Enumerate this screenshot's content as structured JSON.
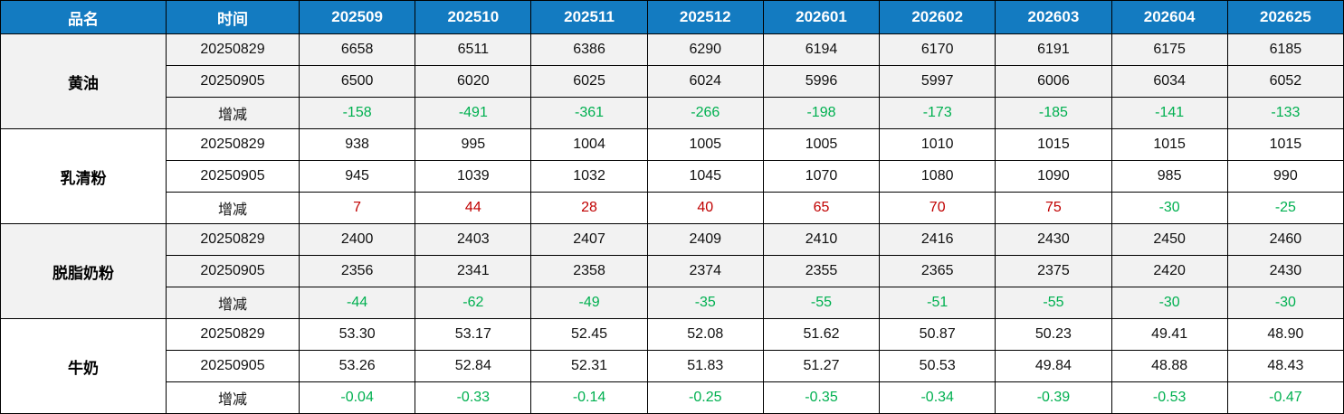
{
  "header": {
    "product_col": "品名",
    "time_col": "时间",
    "contracts": [
      "202509",
      "202510",
      "202511",
      "202512",
      "202601",
      "202602",
      "202603",
      "202604",
      "202625"
    ]
  },
  "change_label": "增减",
  "dates": [
    "20250829",
    "20250905"
  ],
  "products": [
    {
      "name": "黄油",
      "rows": [
        {
          "label": "20250829",
          "type": "price",
          "values": [
            "6658",
            "6511",
            "6386",
            "6290",
            "6194",
            "6170",
            "6191",
            "6175",
            "6185"
          ]
        },
        {
          "label": "20250905",
          "type": "price",
          "values": [
            "6500",
            "6020",
            "6025",
            "6024",
            "5996",
            "5997",
            "6006",
            "6034",
            "6052"
          ]
        },
        {
          "label": "增减",
          "type": "change",
          "values": [
            "-158",
            "-491",
            "-361",
            "-266",
            "-198",
            "-173",
            "-185",
            "-141",
            "-133"
          ]
        }
      ]
    },
    {
      "name": "乳清粉",
      "rows": [
        {
          "label": "20250829",
          "type": "price",
          "values": [
            "938",
            "995",
            "1004",
            "1005",
            "1005",
            "1010",
            "1015",
            "1015",
            "1015"
          ]
        },
        {
          "label": "20250905",
          "type": "price",
          "values": [
            "945",
            "1039",
            "1032",
            "1045",
            "1070",
            "1080",
            "1090",
            "985",
            "990"
          ]
        },
        {
          "label": "增减",
          "type": "change",
          "values": [
            "7",
            "44",
            "28",
            "40",
            "65",
            "70",
            "75",
            "-30",
            "-25"
          ]
        }
      ]
    },
    {
      "name": "脱脂奶粉",
      "rows": [
        {
          "label": "20250829",
          "type": "price",
          "values": [
            "2400",
            "2403",
            "2407",
            "2409",
            "2410",
            "2416",
            "2430",
            "2450",
            "2460"
          ]
        },
        {
          "label": "20250905",
          "type": "price",
          "values": [
            "2356",
            "2341",
            "2358",
            "2374",
            "2355",
            "2365",
            "2375",
            "2420",
            "2430"
          ]
        },
        {
          "label": "增减",
          "type": "change",
          "values": [
            "-44",
            "-62",
            "-49",
            "-35",
            "-55",
            "-51",
            "-55",
            "-30",
            "-30"
          ]
        }
      ]
    },
    {
      "name": "牛奶",
      "rows": [
        {
          "label": "20250829",
          "type": "price",
          "values": [
            "53.30",
            "53.17",
            "52.45",
            "52.08",
            "51.62",
            "50.87",
            "50.23",
            "49.41",
            "48.90"
          ]
        },
        {
          "label": "20250905",
          "type": "price",
          "values": [
            "53.26",
            "52.84",
            "52.31",
            "51.83",
            "51.27",
            "50.53",
            "49.84",
            "48.88",
            "48.43"
          ]
        },
        {
          "label": "增减",
          "type": "change",
          "values": [
            "-0.04",
            "-0.33",
            "-0.14",
            "-0.25",
            "-0.35",
            "-0.34",
            "-0.39",
            "-0.53",
            "-0.47"
          ]
        }
      ]
    }
  ],
  "colors": {
    "header_bg": "#137BC1",
    "header_text": "#FFFFFF",
    "band_gray": "#F2F2F2",
    "band_white": "#FFFFFF",
    "increase_text": "#C00000",
    "decrease_text": "#00B050",
    "border": "#000000"
  }
}
